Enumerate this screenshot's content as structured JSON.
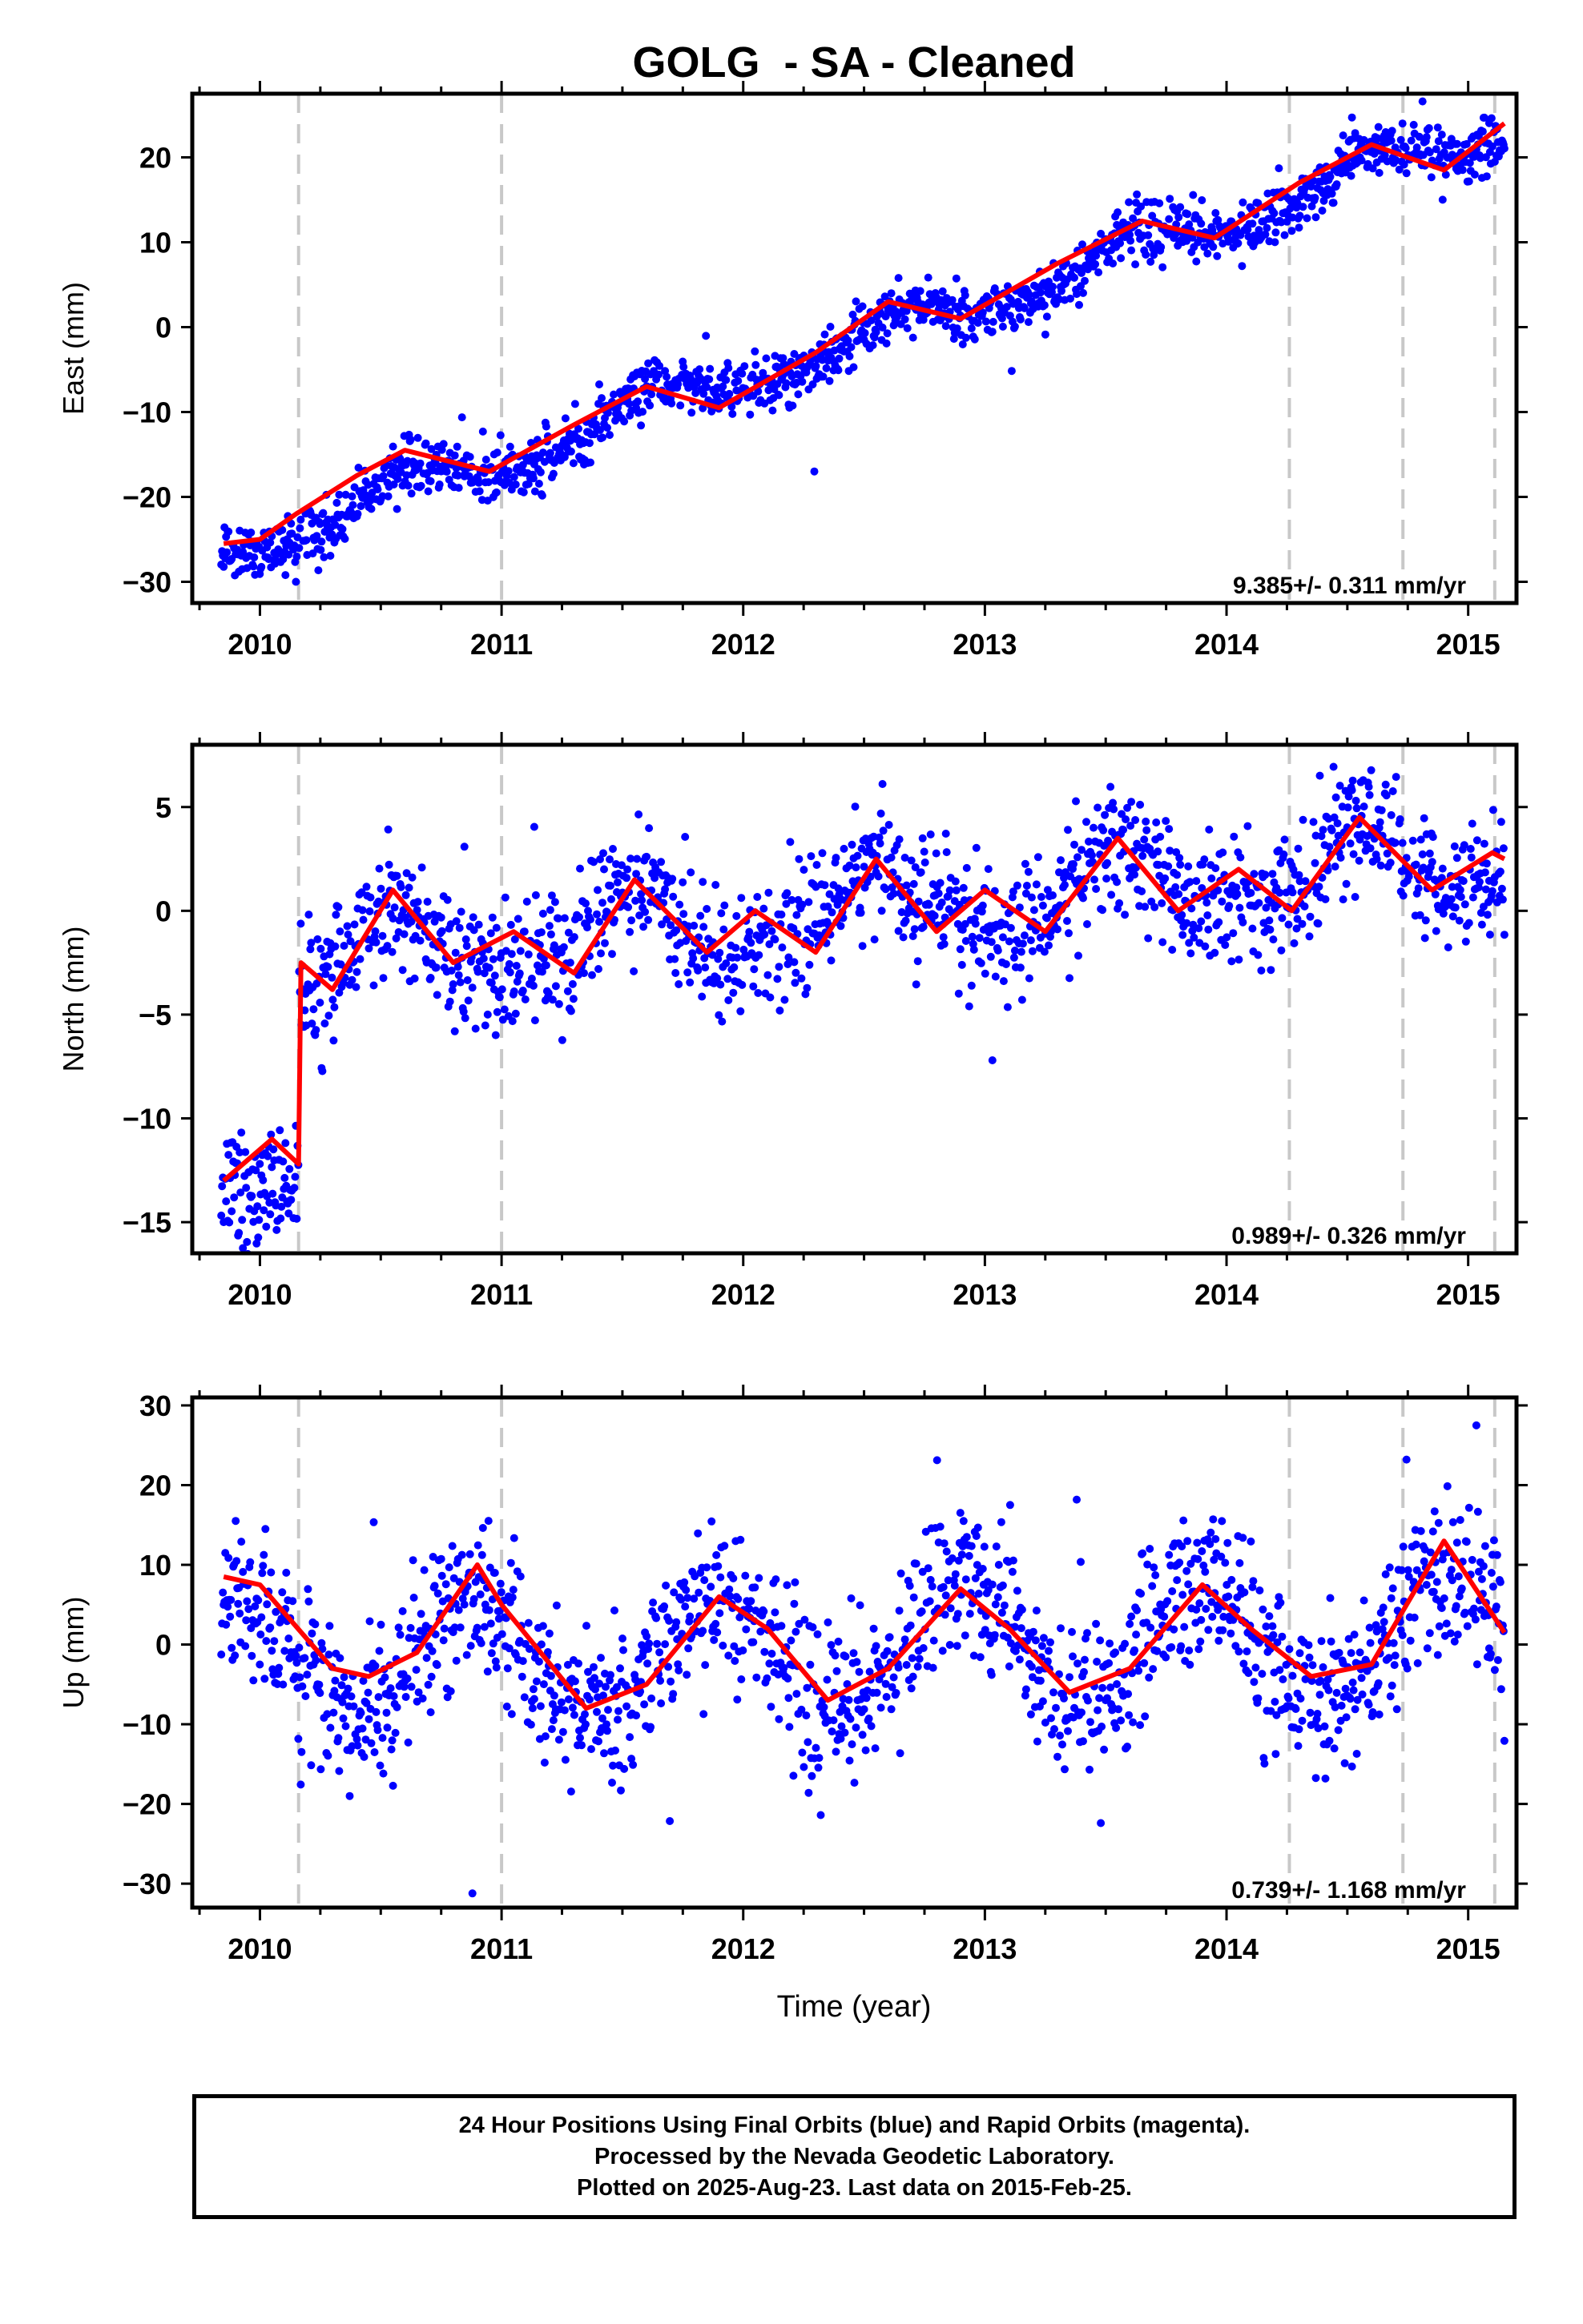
{
  "chart_data": {
    "type": "scatter",
    "title": "GOLG  - SA - Cleaned",
    "xlabel": "Time (year)",
    "xlim": [
      2009.72,
      2015.2
    ],
    "x_ticks": [
      2010,
      2011,
      2012,
      2013,
      2014,
      2015
    ],
    "x_tick_labels": [
      "2010",
      "2011",
      "2012",
      "2013",
      "2014",
      "2015"
    ],
    "data_span": [
      2009.84,
      2015.15
    ],
    "equipment_changes": [
      2010.16,
      2011.0,
      2014.26,
      2014.73,
      2015.11
    ],
    "grid": false,
    "colors": {
      "points": "#0000ff",
      "fit": "#ff0000",
      "event_lines": "#c8c8c8"
    },
    "panels": [
      {
        "name": "east",
        "ylabel": "East (mm)",
        "ylim": [
          -32.5,
          27.5
        ],
        "y_ticks": [
          -30,
          -20,
          -10,
          0,
          10,
          20
        ],
        "y_tick_labels": [
          "−30",
          "−20",
          "−10",
          "0",
          "10",
          "20"
        ],
        "rate_label": "9.385+/- 0.311 mm/yr",
        "model": {
          "trend_mm_per_yr": 9.385,
          "value_at_2012_5": -1.4,
          "annual_amp": 2.2,
          "annual_peak_phase": 0.62,
          "semiannual_amp": 0.3,
          "noise_sd": 1.6
        },
        "fit_points": [
          [
            2009.85,
            -25.5
          ],
          [
            2010.0,
            -25.0
          ],
          [
            2010.15,
            -22.0
          ],
          [
            2010.4,
            -17.5
          ],
          [
            2010.6,
            -14.5
          ],
          [
            2010.95,
            -17.0
          ],
          [
            2011.3,
            -11.5
          ],
          [
            2011.6,
            -7.0
          ],
          [
            2011.9,
            -9.5
          ],
          [
            2012.3,
            -3.0
          ],
          [
            2012.6,
            3.0
          ],
          [
            2012.9,
            1.0
          ],
          [
            2013.3,
            7.5
          ],
          [
            2013.65,
            12.5
          ],
          [
            2013.95,
            10.5
          ],
          [
            2014.3,
            17.0
          ],
          [
            2014.6,
            21.5
          ],
          [
            2014.9,
            18.5
          ],
          [
            2015.15,
            24.0
          ]
        ]
      },
      {
        "name": "north",
        "ylabel": "North (mm)",
        "ylim": [
          -16.5,
          8.0
        ],
        "y_ticks": [
          -15,
          -10,
          -5,
          0,
          5
        ],
        "y_tick_labels": [
          "−15",
          "−10",
          "−5",
          "0",
          "5"
        ],
        "rate_label": "0.989+/- 0.326 mm/yr",
        "model": {
          "trend_mm_per_yr": 0.989,
          "value_at_2012_5": 0.0,
          "annual_amp": 1.7,
          "annual_peak_phase": 0.55,
          "semiannual_amp": 0.5,
          "noise_sd": 1.5,
          "offset_at": 2010.16,
          "offset_mm": -9.5
        },
        "fit_points": [
          [
            2009.85,
            -13.0
          ],
          [
            2010.05,
            -11.0
          ],
          [
            2010.16,
            -12.2
          ],
          [
            2010.17,
            -2.5
          ],
          [
            2010.3,
            -3.8
          ],
          [
            2010.55,
            1.0
          ],
          [
            2010.8,
            -2.5
          ],
          [
            2011.05,
            -1.0
          ],
          [
            2011.3,
            -3.0
          ],
          [
            2011.55,
            1.5
          ],
          [
            2011.85,
            -2.0
          ],
          [
            2012.05,
            0.0
          ],
          [
            2012.3,
            -2.0
          ],
          [
            2012.55,
            2.5
          ],
          [
            2012.8,
            -1.0
          ],
          [
            2013.0,
            1.0
          ],
          [
            2013.25,
            -1.0
          ],
          [
            2013.55,
            3.5
          ],
          [
            2013.8,
            0.0
          ],
          [
            2014.05,
            2.0
          ],
          [
            2014.27,
            0.0
          ],
          [
            2014.55,
            4.5
          ],
          [
            2014.85,
            1.0
          ],
          [
            2015.1,
            2.8
          ],
          [
            2015.15,
            2.5
          ]
        ]
      },
      {
        "name": "up",
        "ylabel": "Up (mm)",
        "ylim": [
          -33.0,
          31.0
        ],
        "y_ticks": [
          -30,
          -20,
          -10,
          0,
          10,
          20,
          30
        ],
        "y_tick_labels": [
          "−30",
          "−20",
          "−10",
          "0",
          "10",
          "20",
          "30"
        ],
        "rate_label": "0.739+/- 1.168 mm/yr",
        "model": {
          "trend_mm_per_yr": 0.739,
          "value_at_2012_5": -0.5,
          "annual_amp": 7.5,
          "annual_peak_phase": 0.9,
          "semiannual_amp": 0.5,
          "noise_sd": 4.8
        },
        "fit_points": [
          [
            2009.85,
            8.5
          ],
          [
            2010.0,
            7.5
          ],
          [
            2010.3,
            -3.0
          ],
          [
            2010.45,
            -4.0
          ],
          [
            2010.65,
            -1.0
          ],
          [
            2010.9,
            10.0
          ],
          [
            2011.0,
            5.0
          ],
          [
            2011.35,
            -8.0
          ],
          [
            2011.6,
            -5.0
          ],
          [
            2011.9,
            6.0
          ],
          [
            2012.1,
            2.0
          ],
          [
            2012.35,
            -7.0
          ],
          [
            2012.6,
            -3.0
          ],
          [
            2012.9,
            7.0
          ],
          [
            2013.1,
            2.0
          ],
          [
            2013.35,
            -6.0
          ],
          [
            2013.6,
            -3.0
          ],
          [
            2013.9,
            7.5
          ],
          [
            2014.1,
            2.0
          ],
          [
            2014.35,
            -4.0
          ],
          [
            2014.6,
            -2.5
          ],
          [
            2014.9,
            13.0
          ],
          [
            2015.15,
            1.5
          ]
        ]
      }
    ]
  },
  "footer": {
    "line1": "24 Hour Positions Using Final Orbits (blue) and Rapid Orbits (magenta).",
    "line2": "Processed by the Nevada Geodetic Laboratory.",
    "line3": "Plotted on 2025-Aug-23. Last data on 2015-Feb-25."
  }
}
